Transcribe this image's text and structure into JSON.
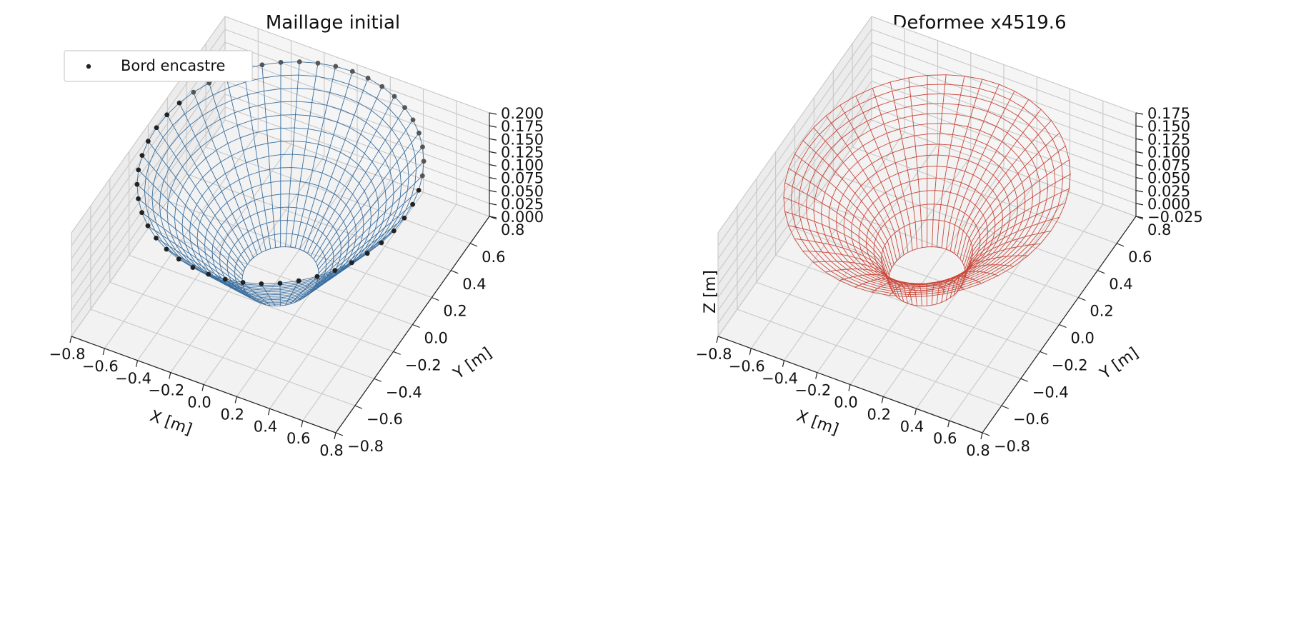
{
  "chart_data": [
    {
      "type": "surface3d-wireframe",
      "title": "Maillage initial",
      "xlabel": "X [m]",
      "ylabel": "Y [m]",
      "zlabel": "",
      "xlim": [
        -0.8,
        0.8
      ],
      "ylim": [
        -0.8,
        0.8
      ],
      "zlim": [
        0.0,
        0.2
      ],
      "x_ticks": [
        "−0.8",
        "−0.6",
        "−0.4",
        "−0.2",
        "0.0",
        "0.2",
        "0.4",
        "0.6",
        "0.8"
      ],
      "y_ticks": [
        "−0.8",
        "−0.6",
        "−0.4",
        "−0.2",
        "0.0",
        "0.2",
        "0.4",
        "0.6",
        "0.8"
      ],
      "z_ticks": [
        "0.000",
        "0.025",
        "0.050",
        "0.075",
        "0.100",
        "0.125",
        "0.150",
        "0.175",
        "0.200"
      ],
      "grid": true,
      "line_color": "#3b6f9e",
      "surface": {
        "r_inner": 0.2,
        "r_outer": 0.75,
        "z_inner": 0.0,
        "z_outer": 0.2
      },
      "legend": {
        "position": "top-left",
        "entries": [
          {
            "label": "Bord encastre",
            "marker": "point",
            "color": "#222222"
          }
        ]
      },
      "boundary_points": {
        "r": 0.75,
        "z": 0.2,
        "count": 48
      }
    },
    {
      "type": "surface3d-wireframe",
      "title": "Deformee x4519.6",
      "xlabel": "X [m]",
      "ylabel": "Y [m]",
      "zlabel": "Z [m]",
      "xlim": [
        -0.8,
        0.8
      ],
      "ylim": [
        -0.8,
        0.8
      ],
      "zlim": [
        -0.025,
        0.175
      ],
      "x_ticks": [
        "−0.8",
        "−0.6",
        "−0.4",
        "−0.2",
        "0.0",
        "0.2",
        "0.4",
        "0.6",
        "0.8"
      ],
      "y_ticks": [
        "−0.8",
        "−0.6",
        "−0.4",
        "−0.2",
        "0.0",
        "0.2",
        "0.4",
        "0.6",
        "0.8"
      ],
      "z_ticks": [
        "−0.025",
        "0.000",
        "0.025",
        "0.050",
        "0.075",
        "0.100",
        "0.125",
        "0.150",
        "0.175"
      ],
      "grid": true,
      "line_color": "#c8473a",
      "surface": {
        "r_inner": 0.2,
        "r_outer": 0.75,
        "z_inner": -0.025,
        "z_outer": 0.15
      }
    }
  ]
}
